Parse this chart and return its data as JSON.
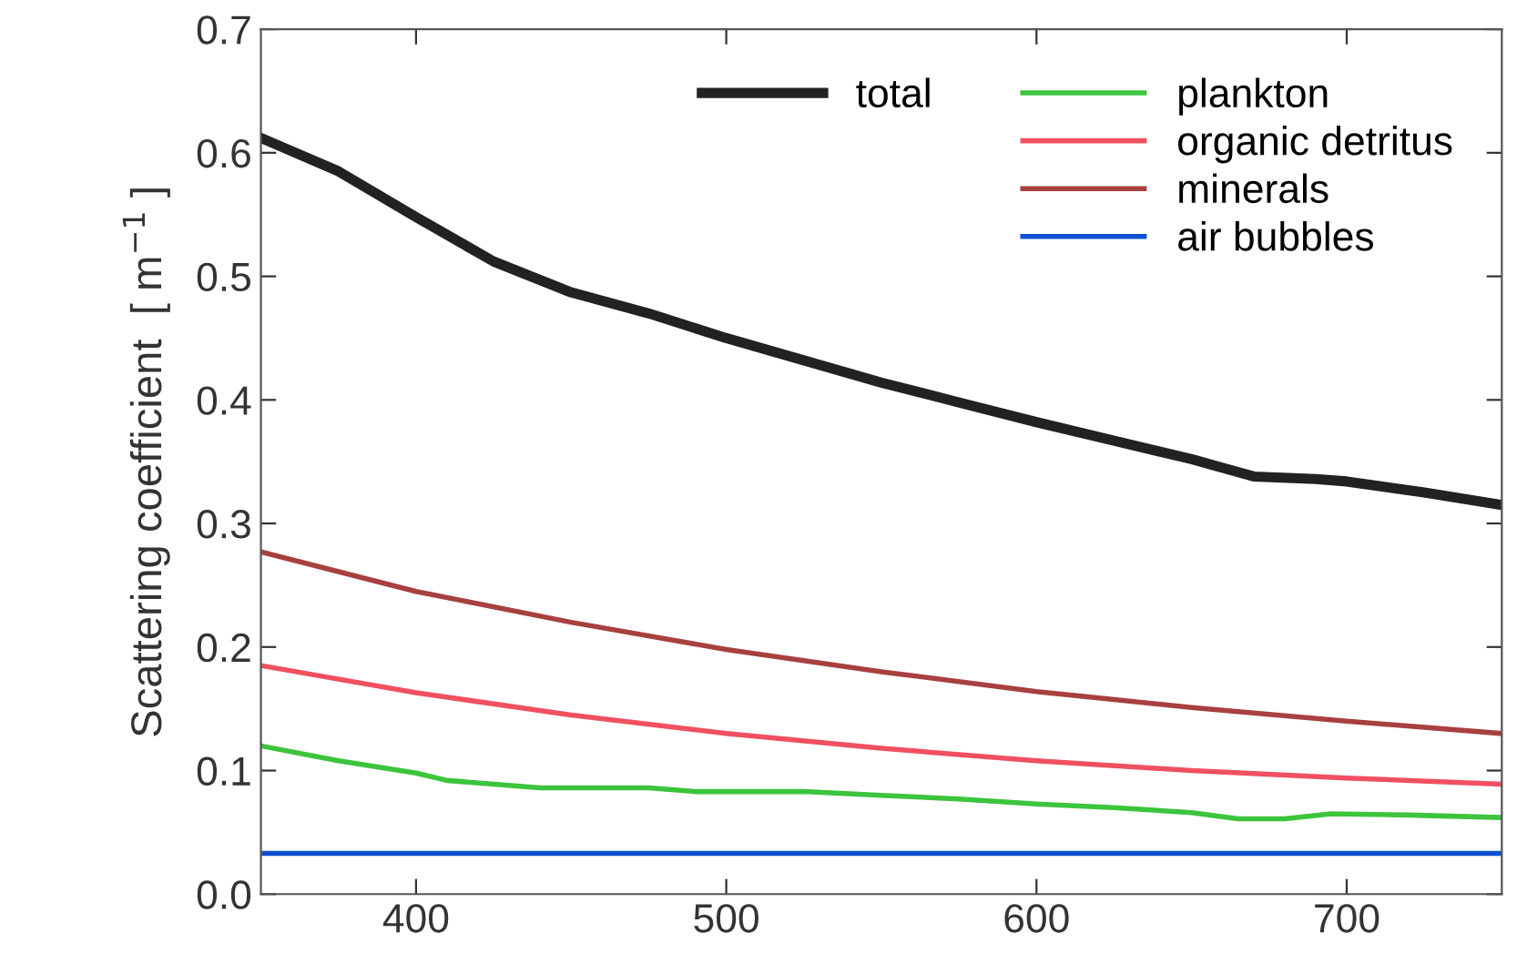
{
  "chart_data": {
    "type": "line",
    "ylabel": "Scattering coefficient  [ m$^{−1}$ ]",
    "xlim": [
      350,
      750
    ],
    "xticks": [
      400,
      500,
      600,
      700
    ],
    "ylim": [
      0,
      0.7
    ],
    "yticks": [
      {
        "value": 0,
        "label": "0.0"
      },
      0.1,
      0.2,
      0.3,
      0.4,
      0.5,
      0.6,
      0.7
    ],
    "grid": false,
    "legend": "top right",
    "marker": "none",
    "line_style": "solid",
    "series": [
      {
        "name": "total",
        "color": "#222222",
        "x": [
          350,
          375,
          400,
          425,
          450,
          475,
          500,
          525,
          550,
          575,
          600,
          625,
          650,
          670,
          690,
          700,
          725,
          750
        ],
        "values": [
          0.612,
          0.585,
          0.548,
          0.512,
          0.487,
          0.47,
          0.45,
          0.432,
          0.414,
          0.398,
          0.382,
          0.367,
          0.352,
          0.338,
          0.336,
          0.334,
          0.325,
          0.315
        ]
      },
      {
        "name": "plankton",
        "color": "#3cc43c",
        "x": [
          350,
          375,
          400,
          410,
          440,
          475,
          490,
          525,
          550,
          575,
          600,
          625,
          650,
          665,
          680,
          695,
          720,
          750
        ],
        "values": [
          0.12,
          0.108,
          0.098,
          0.092,
          0.086,
          0.086,
          0.083,
          0.083,
          0.08,
          0.077,
          0.073,
          0.07,
          0.066,
          0.061,
          0.061,
          0.065,
          0.064,
          0.062
        ]
      },
      {
        "name": "organic detritus",
        "color": "#f05060",
        "x": [
          350,
          400,
          450,
          500,
          550,
          600,
          650,
          700,
          750
        ],
        "values": [
          0.185,
          0.163,
          0.145,
          0.13,
          0.118,
          0.108,
          0.1,
          0.094,
          0.089
        ]
      },
      {
        "name": "minerals",
        "color": "#a84040",
        "x": [
          350,
          400,
          450,
          500,
          550,
          600,
          650,
          700,
          750
        ],
        "values": [
          0.277,
          0.245,
          0.22,
          0.198,
          0.18,
          0.164,
          0.151,
          0.14,
          0.13
        ]
      },
      {
        "name": "air bubbles",
        "color": "#1050d0",
        "x": [
          350,
          750
        ],
        "values": [
          0.033,
          0.033
        ]
      }
    ]
  }
}
